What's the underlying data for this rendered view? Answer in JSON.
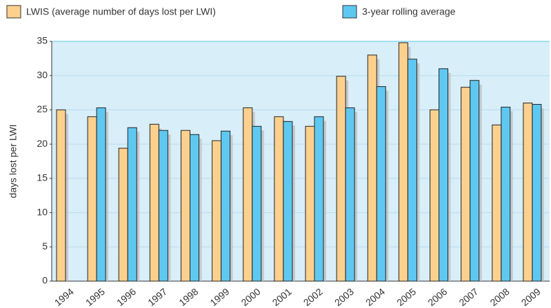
{
  "chart_data": {
    "type": "bar",
    "y_label": "days lost per LWI",
    "categories": [
      "1994",
      "1995",
      "1996",
      "1997",
      "1998",
      "1999",
      "2000",
      "2001",
      "2002",
      "2003",
      "2004",
      "2005",
      "2006",
      "2007",
      "2008",
      "2009"
    ],
    "series": [
      {
        "name": "LWIS (average number of days lost per LWI)",
        "color": "#fdd08e",
        "values": [
          25,
          24,
          19.4,
          22.9,
          22,
          20.5,
          25.3,
          24,
          22.6,
          29.9,
          33,
          34.8,
          25,
          28.3,
          22.8,
          26
        ]
      },
      {
        "name": "3-year rolling average",
        "color": "#5ec8f0",
        "values": [
          null,
          25.3,
          22.4,
          22,
          21.4,
          21.9,
          22.6,
          23.3,
          24,
          25.3,
          28.4,
          32.4,
          31,
          29.3,
          25.4,
          25.8
        ]
      }
    ],
    "ylim": [
      0,
      35
    ],
    "yticks": [
      0,
      5,
      10,
      15,
      20,
      25,
      30,
      35
    ],
    "grid": true
  }
}
